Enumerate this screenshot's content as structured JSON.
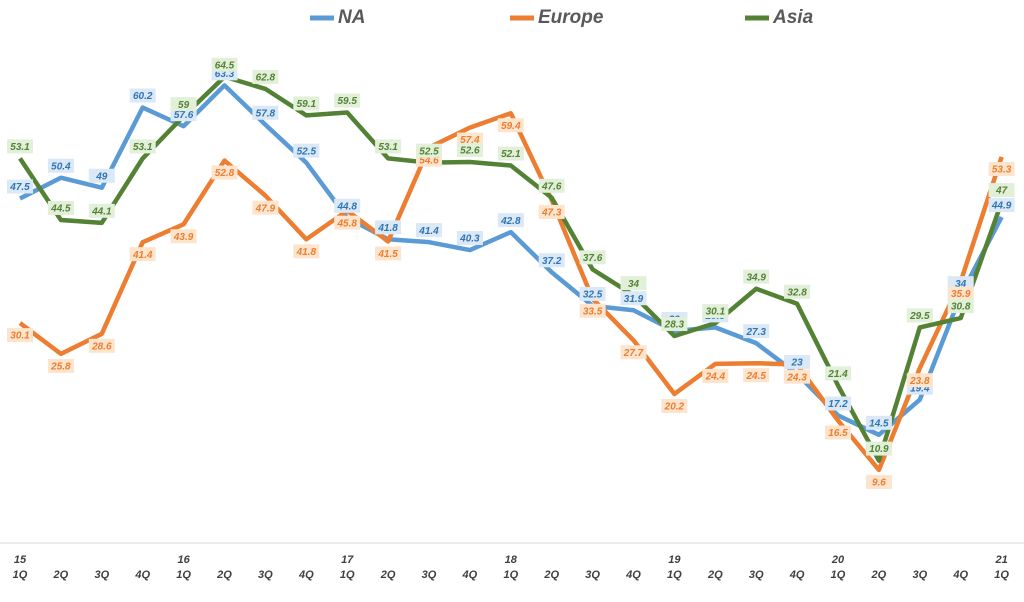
{
  "chart_data": {
    "type": "line",
    "categories": [
      "1Q",
      "2Q",
      "3Q",
      "4Q",
      "1Q",
      "2Q",
      "3Q",
      "4Q",
      "1Q",
      "2Q",
      "3Q",
      "4Q",
      "1Q",
      "2Q",
      "3Q",
      "4Q",
      "1Q",
      "2Q",
      "3Q",
      "4Q",
      "1Q",
      "2Q",
      "3Q",
      "4Q",
      "1Q"
    ],
    "category_groups": [
      "15",
      null,
      null,
      null,
      "16",
      null,
      null,
      null,
      "17",
      null,
      null,
      null,
      "18",
      null,
      null,
      null,
      "19",
      null,
      null,
      null,
      "20",
      null,
      null,
      null,
      "21"
    ],
    "ylim": [
      4,
      66
    ],
    "legend": "top",
    "series": [
      {
        "name": "NA",
        "color": "#5b9bd5",
        "label_fill": "#dbe8f5",
        "label_color": "#2e75b6",
        "values": [
          47.5,
          50.4,
          49.0,
          60.2,
          57.6,
          63.3,
          57.8,
          52.5,
          44.8,
          41.8,
          41.4,
          40.3,
          42.8,
          37.2,
          32.5,
          31.9,
          29.0,
          29.5,
          27.3,
          23.0,
          17.2,
          14.5,
          19.4,
          34.0,
          44.9
        ]
      },
      {
        "name": "Europe",
        "color": "#ed7d31",
        "label_fill": "#fde4cc",
        "label_color": "#ed7d31",
        "values": [
          30.1,
          25.8,
          28.6,
          41.4,
          43.9,
          52.8,
          47.9,
          41.8,
          45.8,
          41.5,
          54.6,
          57.4,
          59.4,
          47.3,
          33.5,
          27.7,
          20.2,
          24.4,
          24.5,
          24.3,
          16.5,
          9.6,
          23.8,
          35.9,
          53.3
        ]
      },
      {
        "name": "Asia",
        "color": "#548235",
        "label_fill": "#e2efd9",
        "label_color": "#548235",
        "values": [
          53.1,
          44.5,
          44.1,
          53.1,
          59.0,
          64.5,
          62.8,
          59.1,
          59.5,
          53.1,
          52.5,
          52.6,
          52.1,
          47.6,
          37.6,
          34.0,
          28.3,
          30.1,
          34.9,
          32.8,
          21.4,
          10.9,
          29.5,
          30.8,
          47.0
        ]
      }
    ]
  }
}
